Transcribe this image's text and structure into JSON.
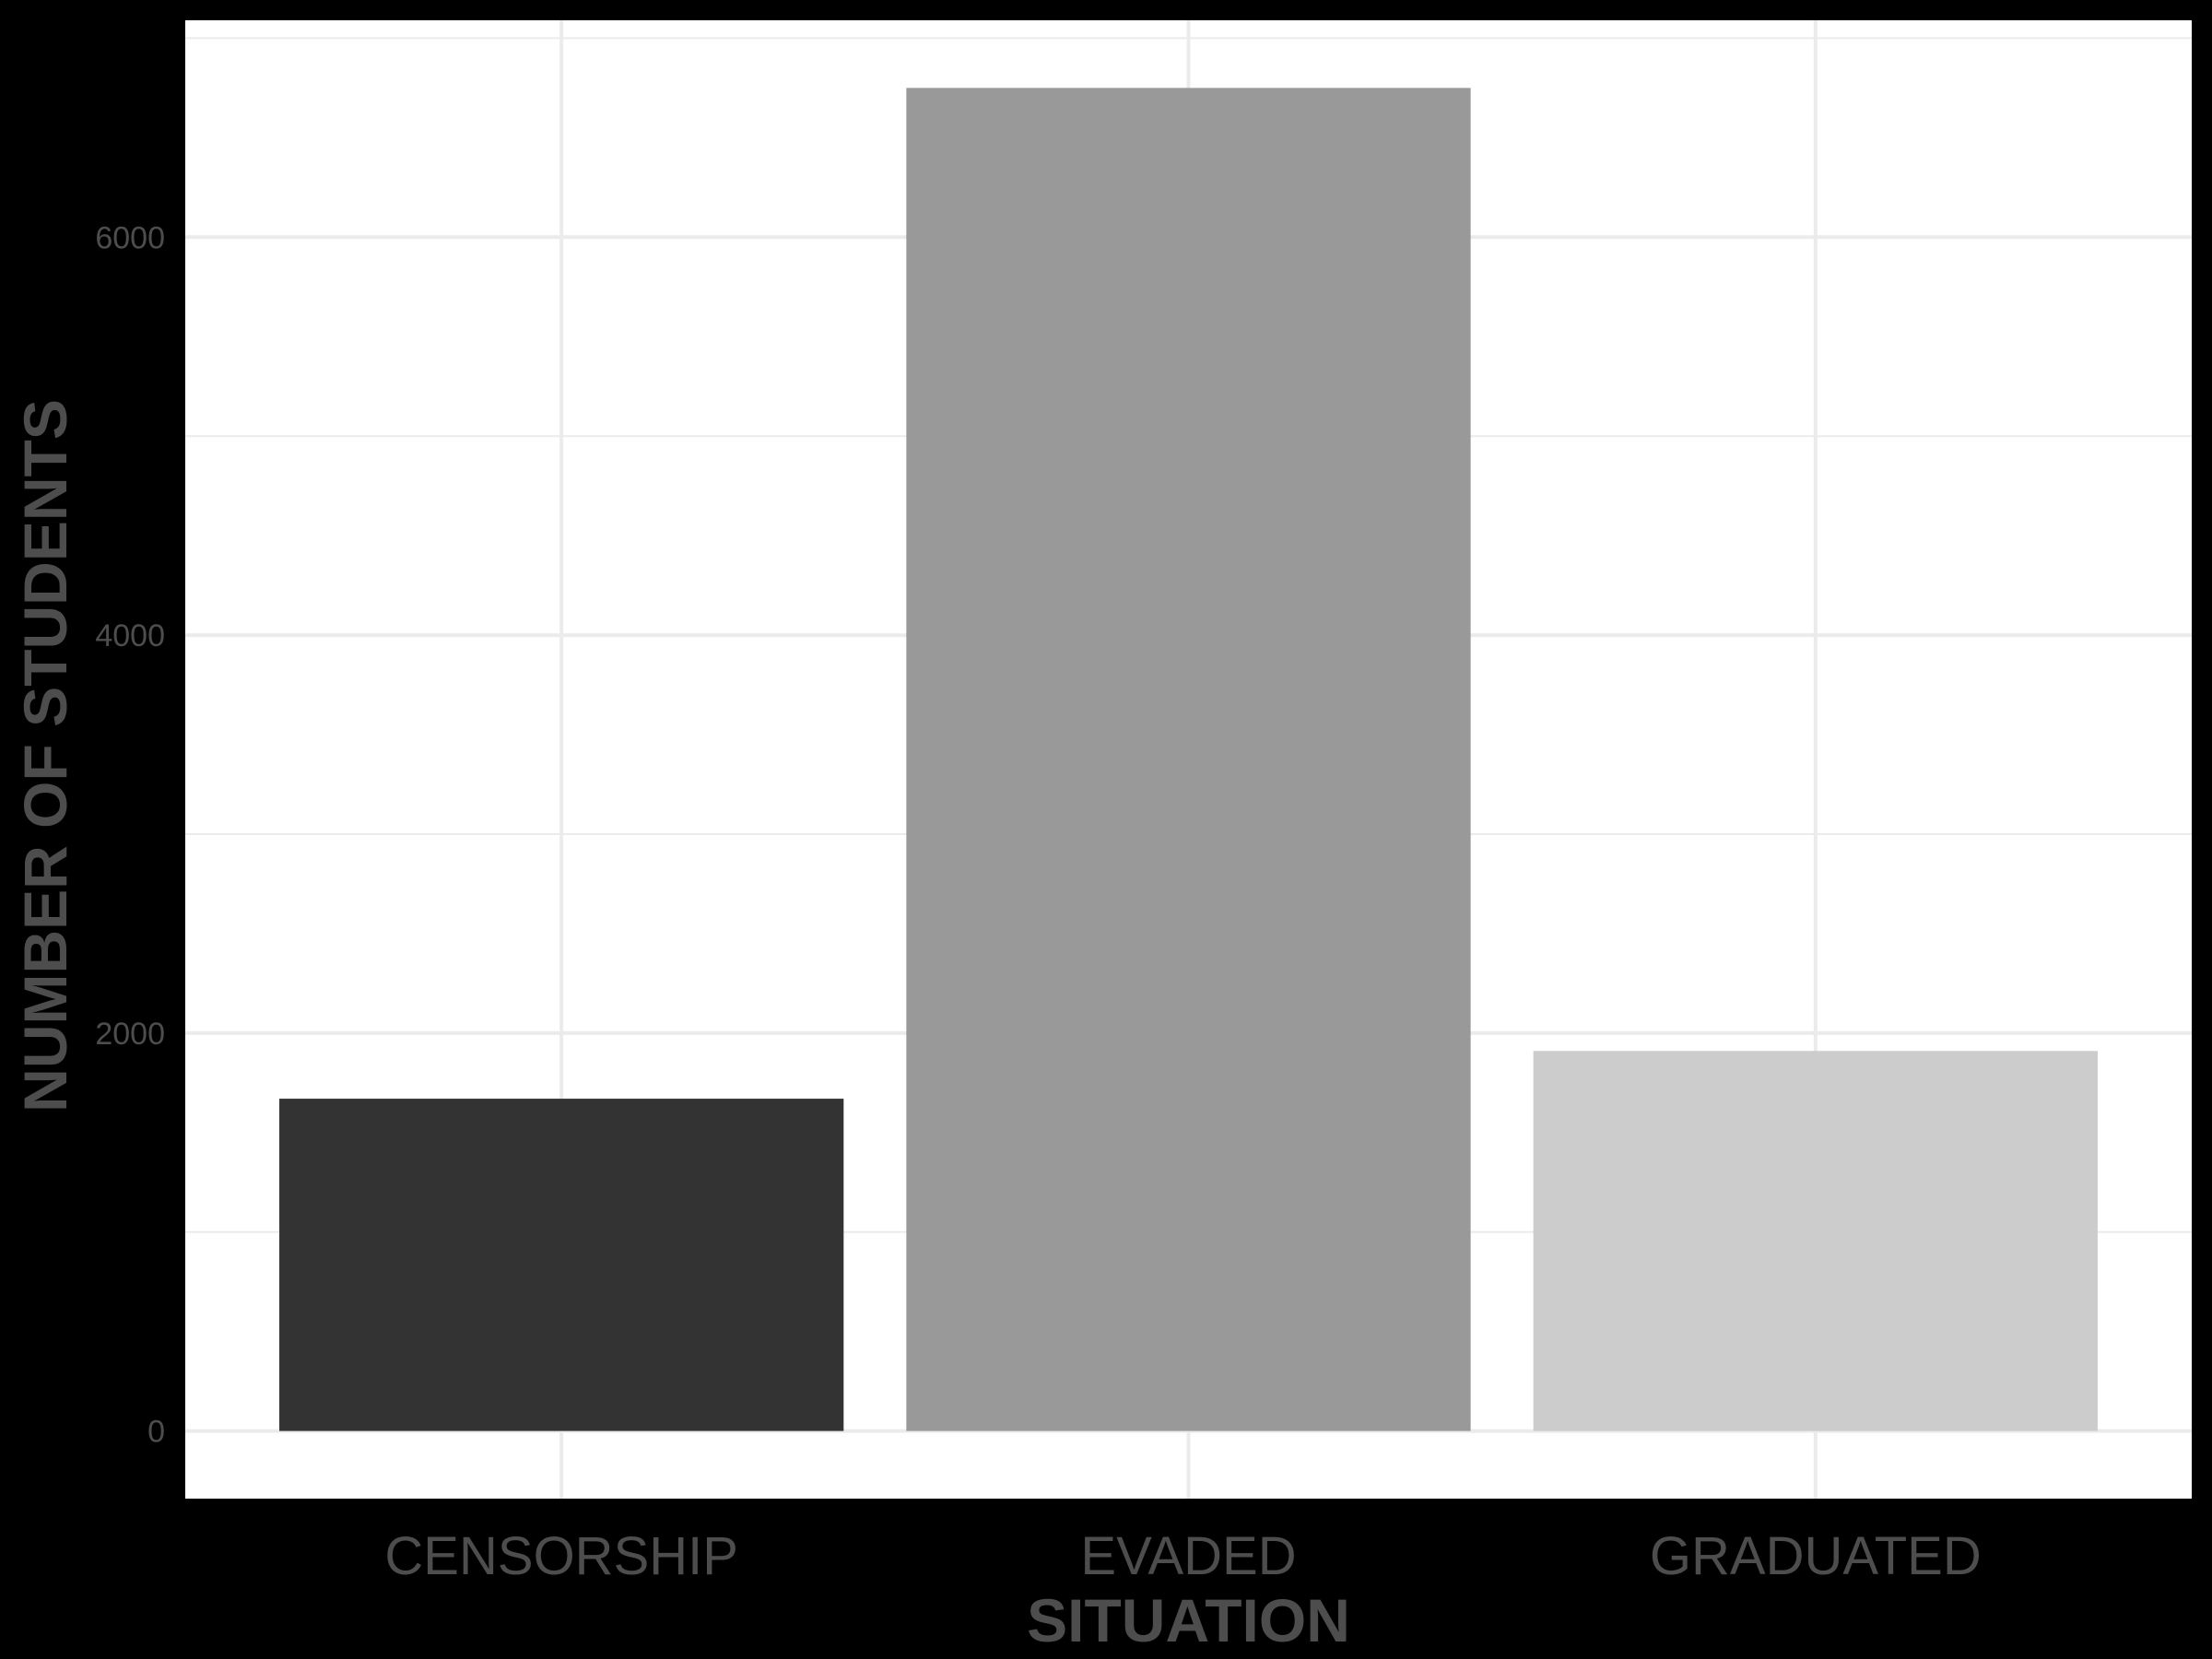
{
  "chart_data": {
    "type": "bar",
    "categories": [
      "CENSORSHIP",
      "EVADED",
      "GRADUATED"
    ],
    "values": [
      1670,
      6750,
      1910
    ],
    "colors": [
      "#333333",
      "#999999",
      "#cccccc"
    ],
    "xlabel": "SITUATION",
    "ylabel": "NUMBER OF STUDENTS",
    "ylim": [
      -340,
      7090
    ],
    "yticks": [
      0,
      2000,
      4000,
      6000
    ],
    "ytick_labels": [
      "0",
      "2000",
      "4000",
      "6000"
    ],
    "grid": true,
    "legend": "none",
    "panel_background": "#ffffff",
    "grid_color": "#ebebeb",
    "figure_background": "#000000"
  }
}
